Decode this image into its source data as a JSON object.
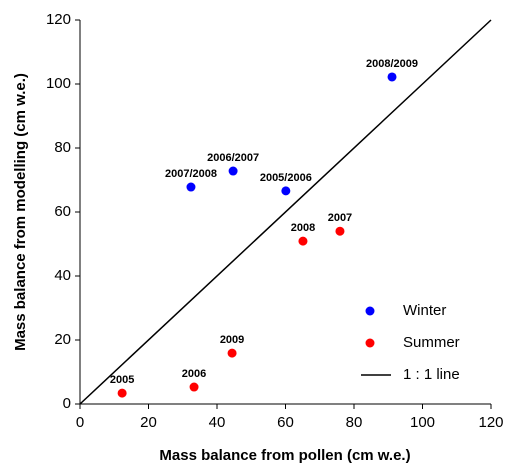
{
  "chart_data": {
    "type": "scatter",
    "xlabel": "Mass balance from pollen (cm w.e.)",
    "ylabel": "Mass balance from modelling (cm w.e.)",
    "xlim": [
      0,
      120
    ],
    "ylim": [
      0,
      120
    ],
    "xticks": [
      0,
      20,
      40,
      60,
      80,
      100,
      120
    ],
    "yticks": [
      0,
      20,
      40,
      60,
      80,
      100,
      120
    ],
    "grid": false,
    "legend": "lower right",
    "series": [
      {
        "name": "Winter",
        "color": "#0000ff",
        "x": [
          32.4,
          44.7,
          60.1,
          91.1
        ],
        "values": [
          67.8,
          72.8,
          66.6,
          102.2
        ],
        "labels": [
          "2007/2008",
          "2006/2007",
          "2005/2006",
          "2008/2009"
        ]
      },
      {
        "name": "Summer",
        "color": "#ff0000",
        "x": [
          12.3,
          33.3,
          44.4,
          65.1,
          75.9
        ],
        "values": [
          3.4,
          5.3,
          15.9,
          50.9,
          54
        ],
        "labels": [
          "2005",
          "2006",
          "2009",
          "2008",
          "2007"
        ]
      }
    ],
    "reference_line": {
      "name": "1 : 1 line",
      "color": "#000000",
      "x": [
        0,
        120
      ],
      "values": [
        0,
        120
      ]
    }
  }
}
